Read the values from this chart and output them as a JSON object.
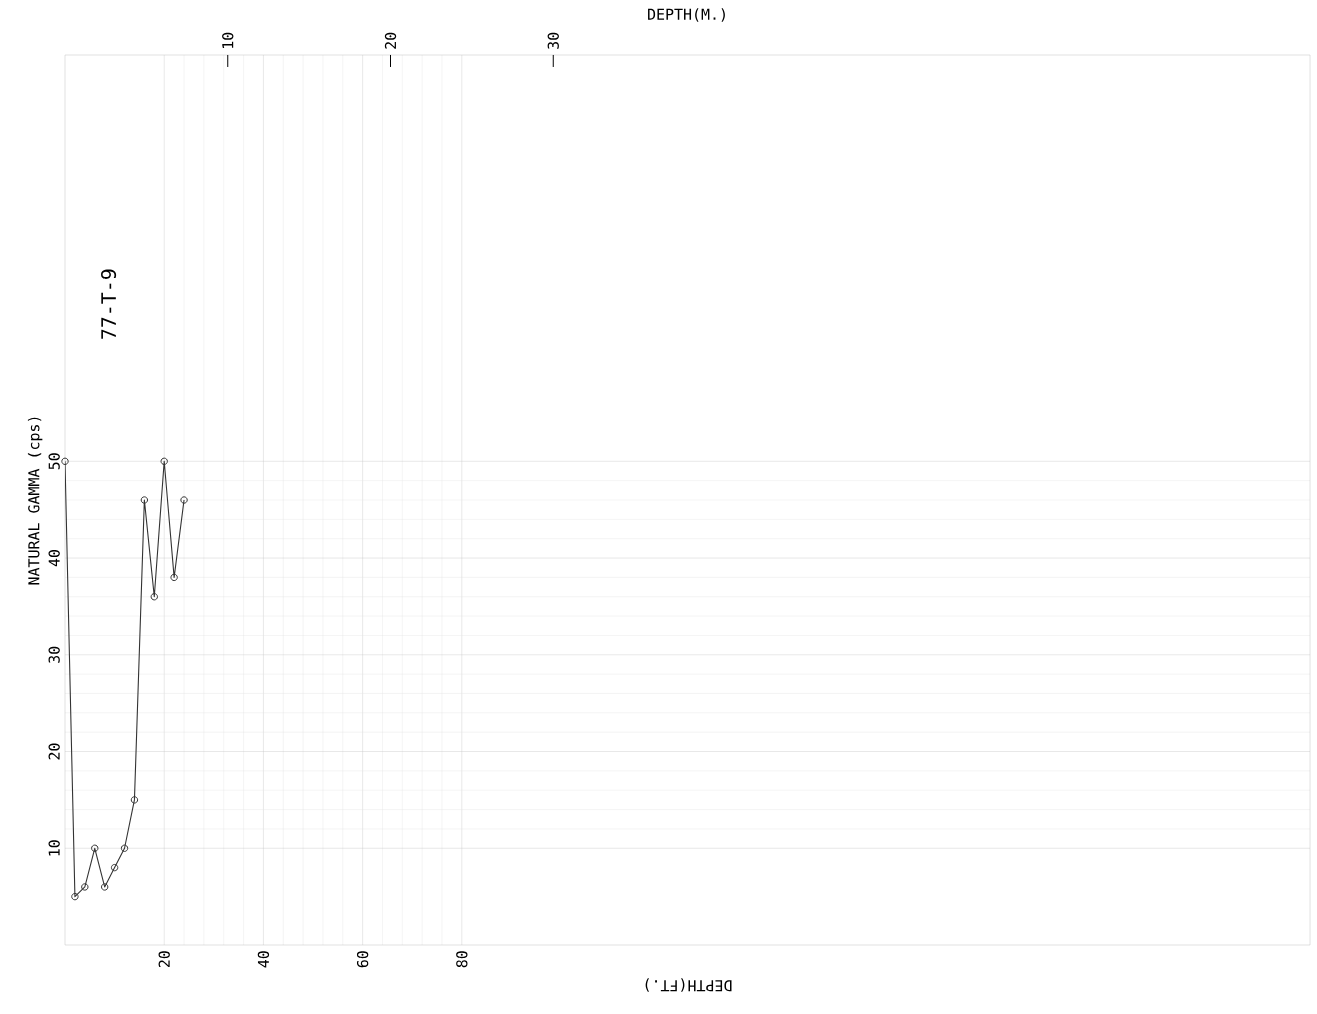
{
  "chart_data": {
    "type": "line",
    "xlabel": "DEPTH(FT.)",
    "ylabel": "NATURAL GAMMA (cps)",
    "x2label": "DEPTH(M.)",
    "annotations": [
      "77-T-9"
    ],
    "x": [
      0,
      2,
      4,
      6,
      8,
      10,
      12,
      14,
      16,
      18,
      20,
      22,
      24
    ],
    "values": [
      50,
      5,
      6,
      10,
      6,
      8,
      10,
      15,
      46,
      36,
      50,
      38,
      46
    ],
    "color": "#333333",
    "marker": "circle",
    "xlim": [
      0,
      251
    ],
    "ylim": [
      0,
      92
    ],
    "x2lim": [
      0,
      76.5
    ],
    "xticks": [
      20,
      40,
      60,
      80
    ],
    "yticks": [
      10,
      20,
      30,
      40,
      50
    ],
    "x2ticks": [
      10,
      20,
      30
    ],
    "grid": true
  }
}
